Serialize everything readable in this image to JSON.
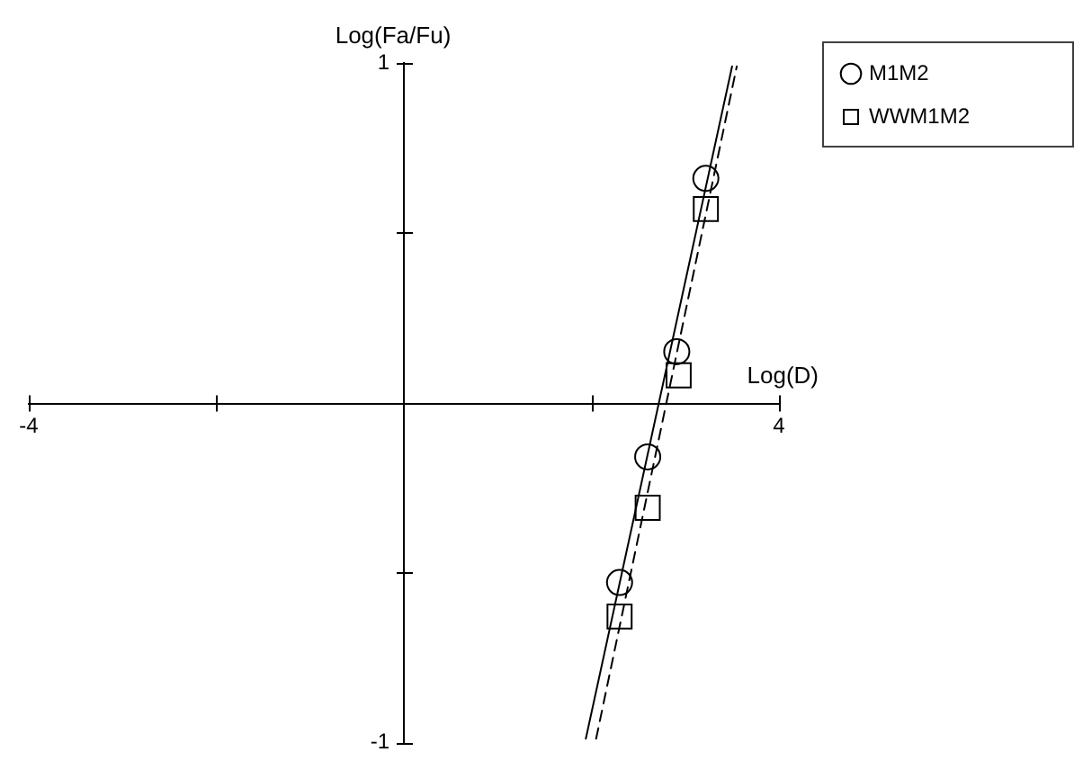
{
  "chart_data": {
    "type": "scatter",
    "xlabel": "Log(D)",
    "ylabel": "Log(Fa/Fu)",
    "series": [
      {
        "name": "M1M2",
        "color": "#000000",
        "marker": "circle",
        "x": [
          2.3,
          2.6,
          2.91,
          3.22
        ],
        "values": [
          -0.53,
          -0.16,
          0.15,
          0.66
        ]
      },
      {
        "name": "WWM1M2",
        "color": "#000000",
        "marker": "square",
        "x": [
          2.3,
          2.6,
          2.93,
          3.22
        ],
        "values": [
          -0.63,
          -0.31,
          0.08,
          0.57
        ]
      },
      {
        "type": "line",
        "color": "#000000",
        "line_style": "solid",
        "marker": "none",
        "x": [
          1.94,
          3.5
        ],
        "values": [
          -0.99,
          0.99
        ]
      },
      {
        "type": "line",
        "color": "#000000",
        "line_style": "dashed",
        "marker": "none",
        "x": [
          2.05,
          3.55
        ],
        "values": [
          -0.99,
          0.99
        ]
      }
    ],
    "xlim": [
      -4,
      4
    ],
    "ylim": [
      -1,
      1
    ],
    "xticks": [
      -4,
      {
        "value": -2,
        "label": null
      },
      {
        "value": 2,
        "label": null
      },
      4
    ],
    "yticks": [
      -1,
      {
        "value": -0.5,
        "label": null
      },
      {
        "value": 0.5,
        "label": null
      },
      1
    ],
    "grid": false,
    "legend": "top right"
  }
}
